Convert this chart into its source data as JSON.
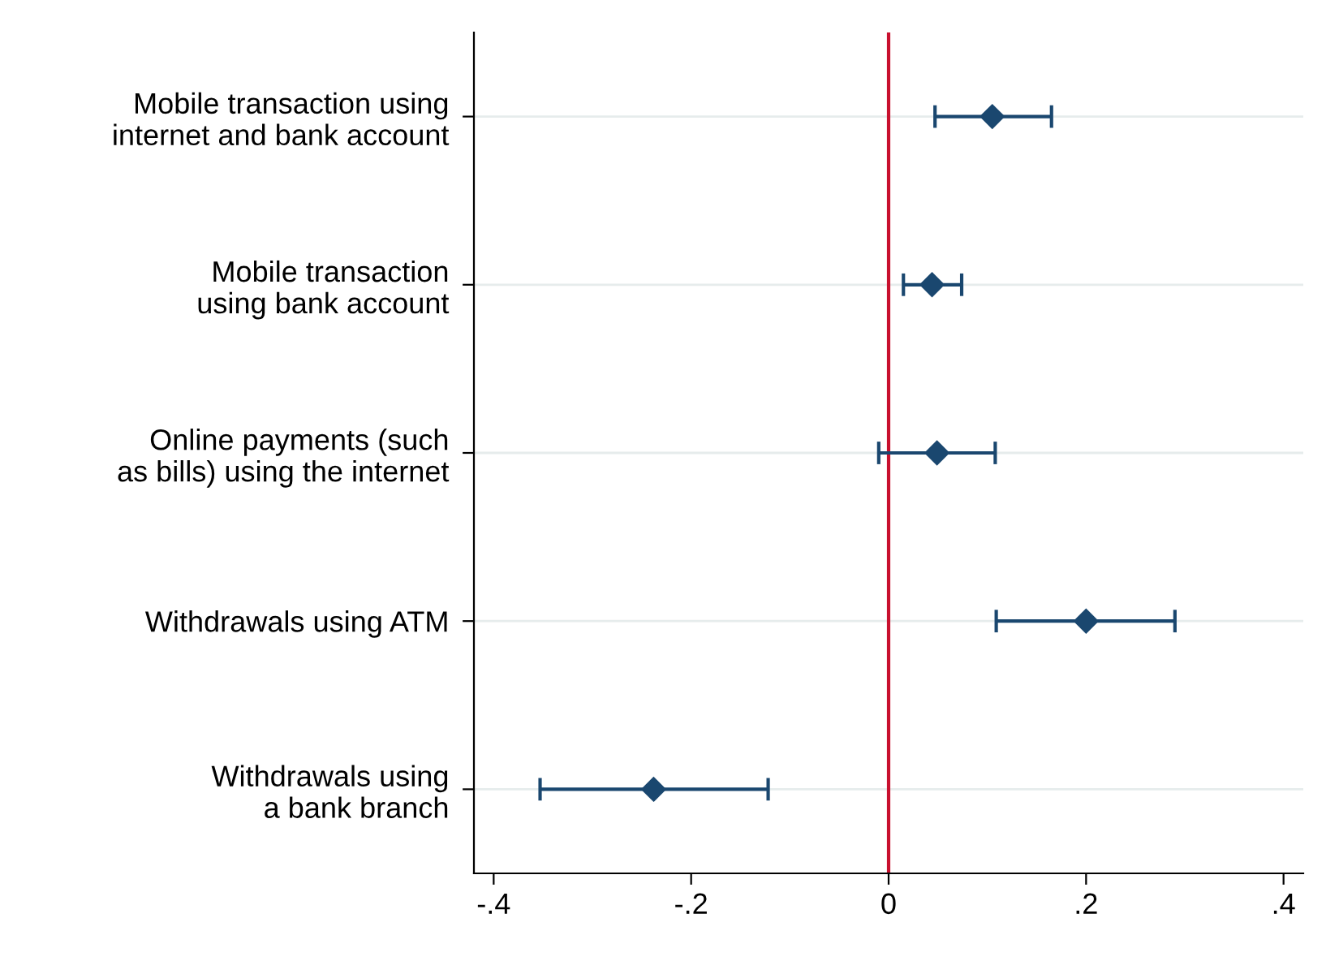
{
  "chart_data": {
    "type": "scatter",
    "orientation": "horizontal",
    "categories": [
      "Mobile transaction using\ninternet and bank account",
      "Mobile transaction\nusing bank account",
      "Online payments (such\nas bills) using the internet",
      "Withdrawals using ATM",
      "Withdrawals using\na bank branch"
    ],
    "values": [
      0.105,
      0.044,
      0.049,
      0.2,
      -0.238
    ],
    "errors": [
      [
        0.047,
        0.165
      ],
      [
        0.015,
        0.074
      ],
      [
        -0.01,
        0.108
      ],
      [
        0.109,
        0.29
      ],
      [
        -0.353,
        -0.122
      ]
    ],
    "color": "#1a476f",
    "marker": "diamond",
    "xlim": [
      -0.42,
      0.42
    ],
    "xticks": [
      {
        "value": -0.4,
        "label": "-.4"
      },
      {
        "value": -0.2,
        "label": "-.2"
      },
      0,
      {
        "value": 0.2,
        "label": ".2"
      },
      {
        "value": 0.4,
        "label": ".4"
      }
    ],
    "ref_lines": [
      {
        "axis": "x",
        "value": 0,
        "label": null,
        "color": "#c8102e"
      }
    ],
    "grid": "y"
  }
}
